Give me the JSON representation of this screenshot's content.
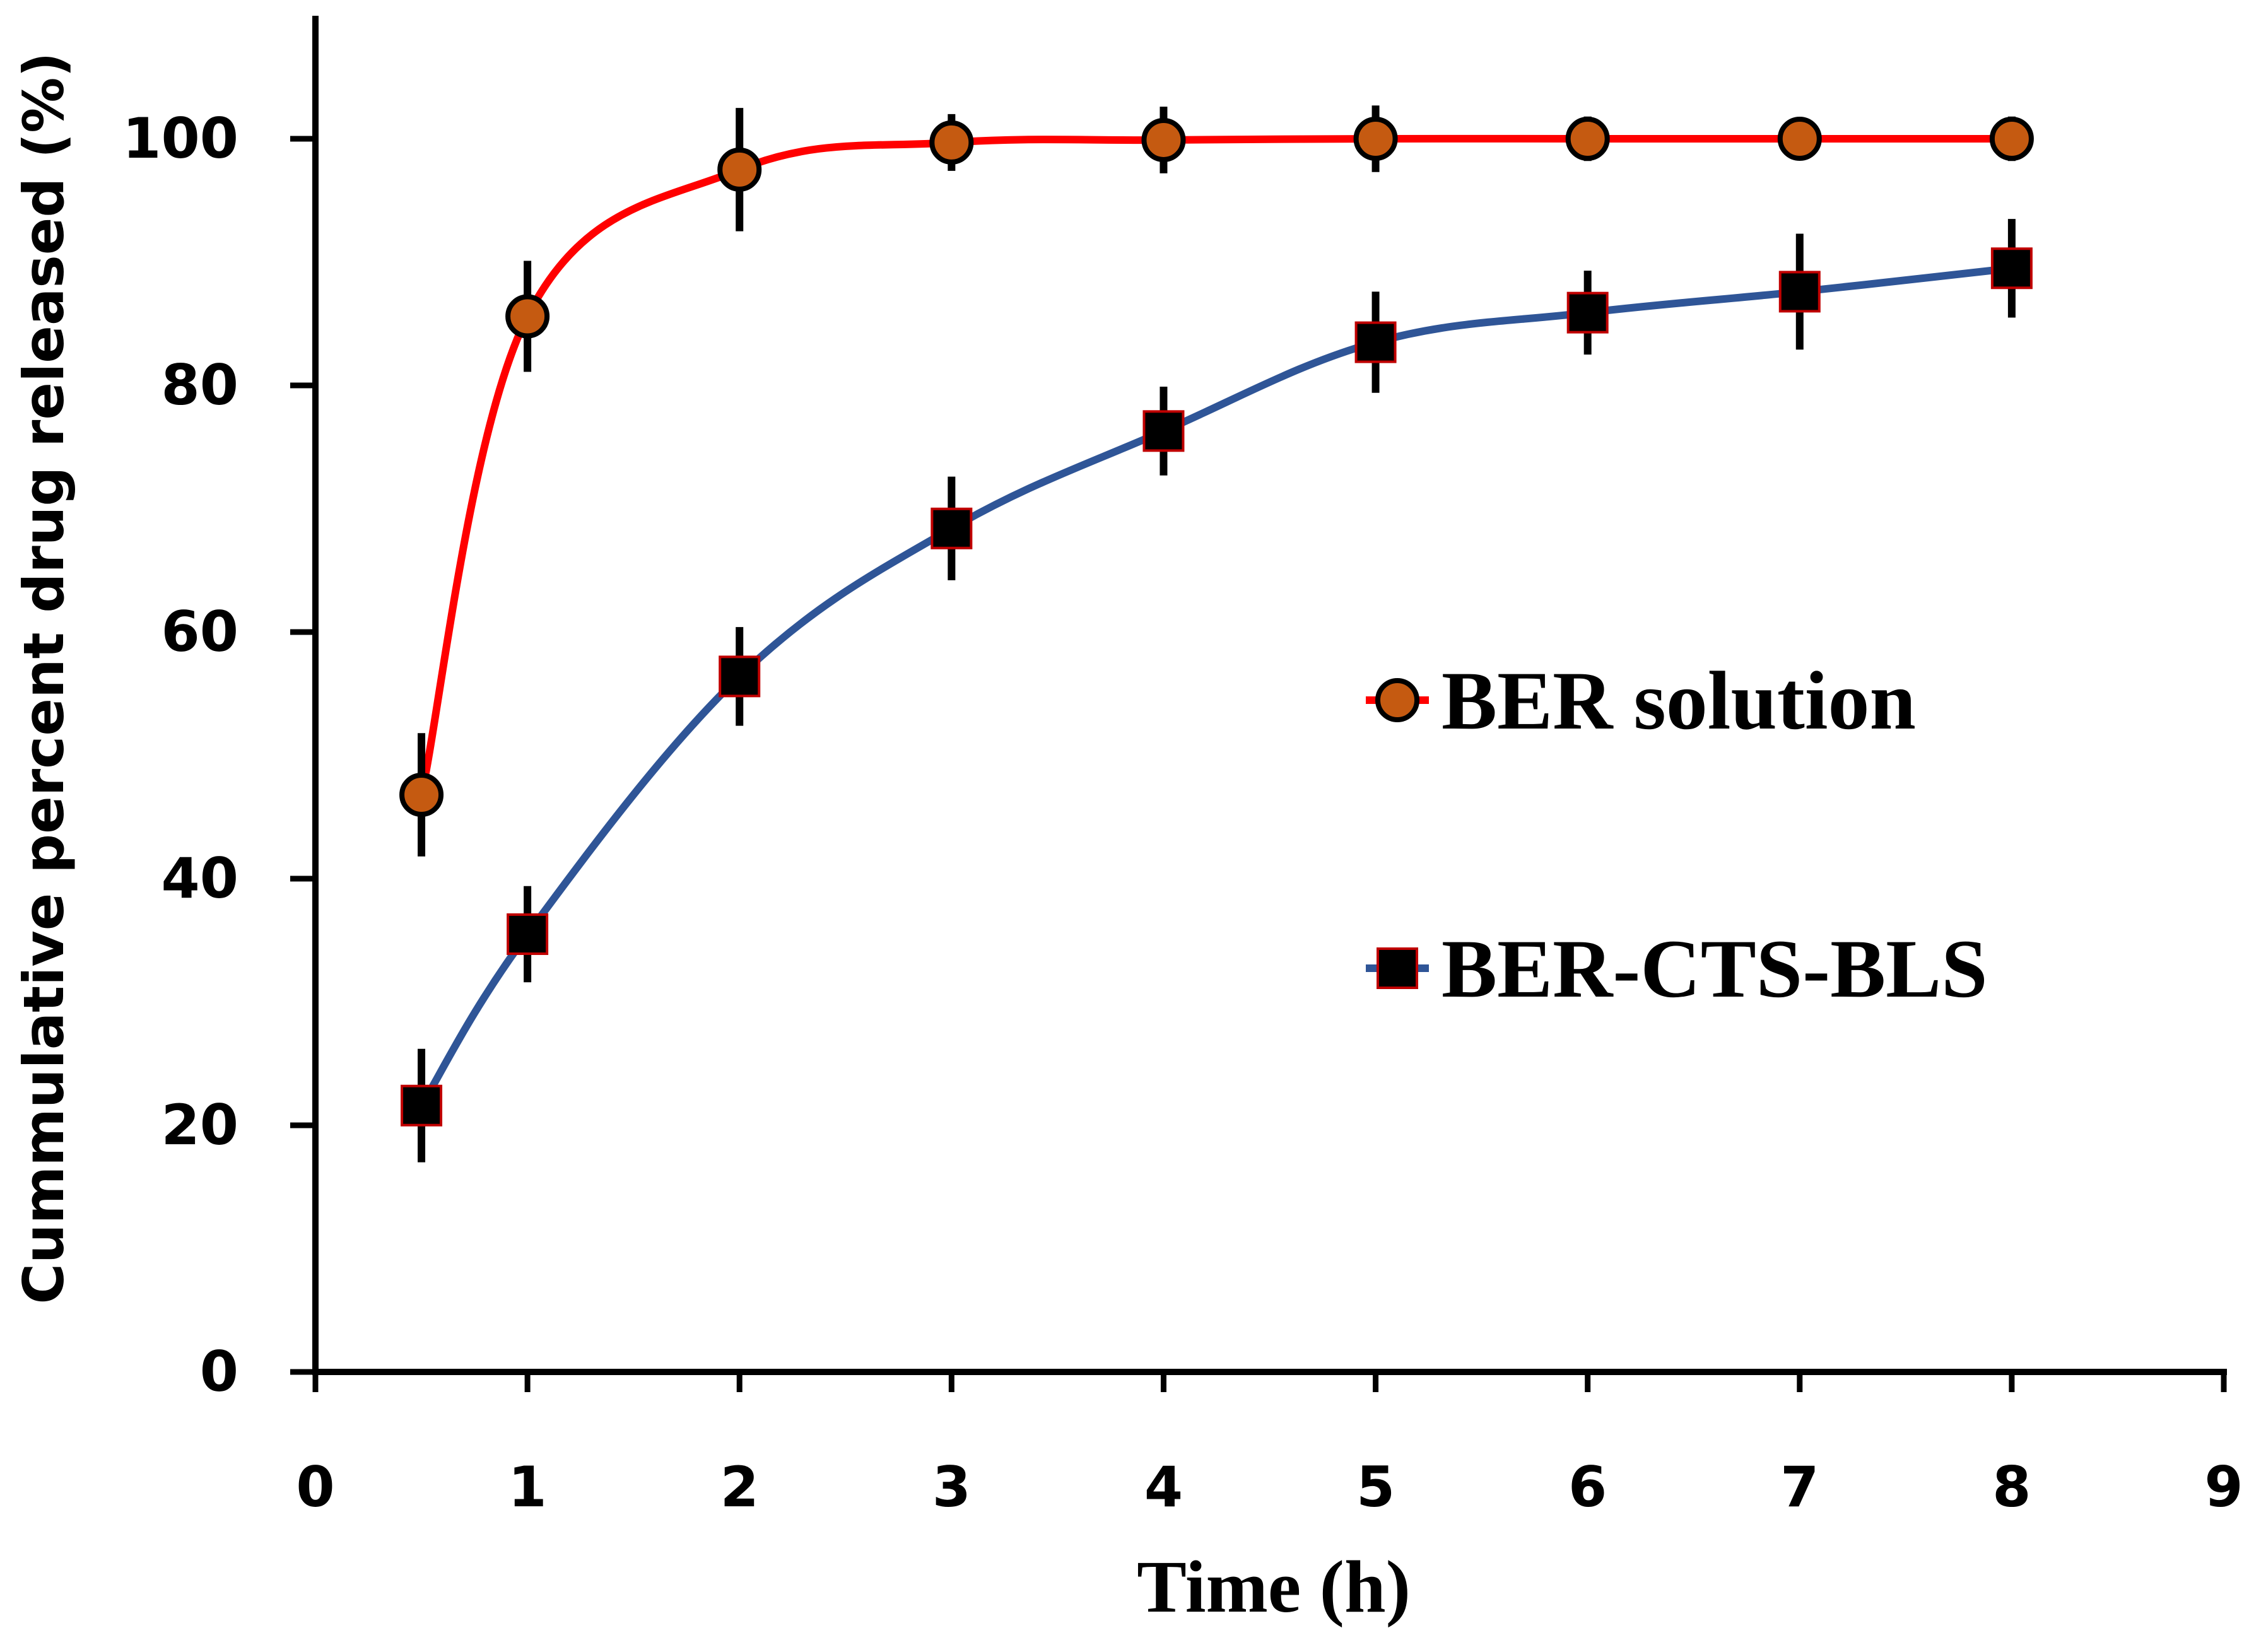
{
  "chart_data": {
    "type": "line",
    "title": "",
    "xlabel": "Time (h)",
    "ylabel": "Cummulative percent drug released (%)",
    "xlim": [
      0,
      9
    ],
    "ylim": [
      0,
      110
    ],
    "x_ticks": [
      "0",
      "1",
      "2",
      "3",
      "4",
      "5",
      "6",
      "7",
      "8",
      "9"
    ],
    "y_ticks": [
      "0",
      "20",
      "40",
      "60",
      "80",
      "100"
    ],
    "grid": false,
    "legend_position": "center-right",
    "series": [
      {
        "name": "BER solution",
        "marker": "circle",
        "line_color": "#ff0000",
        "marker_color": "#c55a11",
        "x": [
          0.5,
          1,
          2,
          3,
          4,
          5,
          6,
          7,
          8
        ],
        "y": [
          46.8,
          85.6,
          97.5,
          99.7,
          99.9,
          100,
          100,
          100,
          100
        ],
        "error": [
          5.0,
          4.5,
          5.0,
          2.3,
          2.7,
          2.7,
          1.8,
          1.2,
          1.8
        ]
      },
      {
        "name": "BER-CTS-BLS",
        "marker": "square",
        "line_color": "#2f5597",
        "marker_color": "#000000",
        "x": [
          0.5,
          1,
          2,
          3,
          4,
          5,
          6,
          7,
          8
        ],
        "y": [
          21.6,
          35.5,
          56.4,
          68.4,
          76.3,
          83.5,
          85.9,
          87.6,
          89.5
        ],
        "error": [
          4.6,
          3.9,
          4.0,
          4.2,
          3.6,
          4.1,
          3.4,
          4.7,
          4.0
        ]
      }
    ]
  }
}
